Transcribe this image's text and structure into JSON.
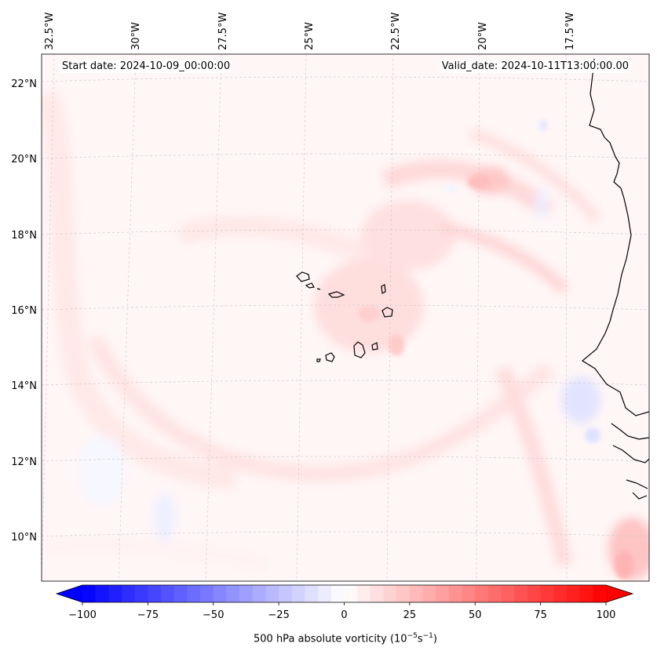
{
  "header": {
    "start_date": "Start date: 2024-10-09_00:00:00",
    "valid_date": "Valid_date: 2024-10-11T13:00:00.00"
  },
  "map": {
    "lon_labels": [
      "32.5°W",
      "30°W",
      "27.5°W",
      "25°W",
      "22.5°W",
      "20°W",
      "17.5°W"
    ],
    "lat_labels": [
      "22°N",
      "20°N",
      "18°N",
      "16°N",
      "14°N",
      "12°N",
      "10°N"
    ],
    "colors": {
      "coast": "#000000",
      "grid": "#c8c8c8",
      "frame": "#000000"
    }
  },
  "colorbar": {
    "label": "500 hPa absolute vorticity (10",
    "label_exp1": "−5",
    "label_mid": "s",
    "label_exp2": "−1",
    "label_end": ")",
    "ticks": [
      "−100",
      "−75",
      "−50",
      "−25",
      "0",
      "25",
      "50",
      "75",
      "100"
    ],
    "colors": {
      "min": "#0000ff",
      "zero": "#ffffff",
      "max": "#ff0000"
    }
  }
}
